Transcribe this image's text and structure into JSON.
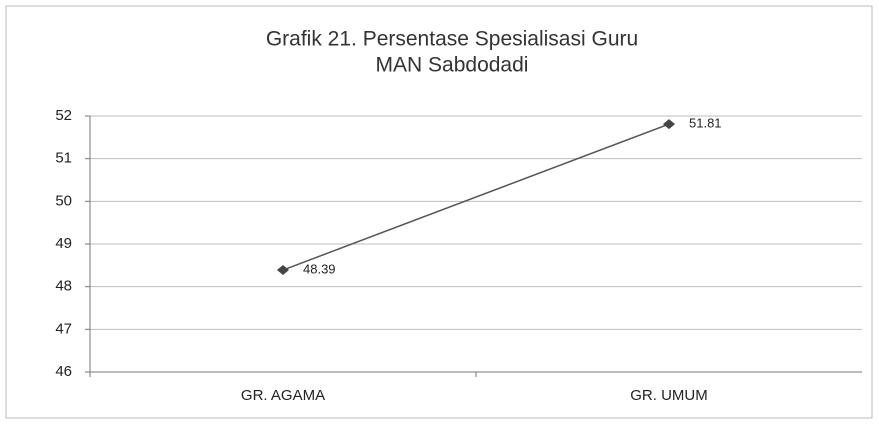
{
  "chart_data": {
    "type": "line",
    "title": [
      "Grafik 21. Persentase Spesialisasi Guru",
      "MAN Sabdodadi"
    ],
    "categories": [
      "GR. AGAMA",
      "GR. UMUM"
    ],
    "values": [
      48.39,
      51.81
    ],
    "color": "#555555",
    "ylim": [
      46,
      52
    ],
    "yticks": [
      46,
      47,
      48,
      49,
      50,
      51,
      52
    ],
    "grid": true
  }
}
